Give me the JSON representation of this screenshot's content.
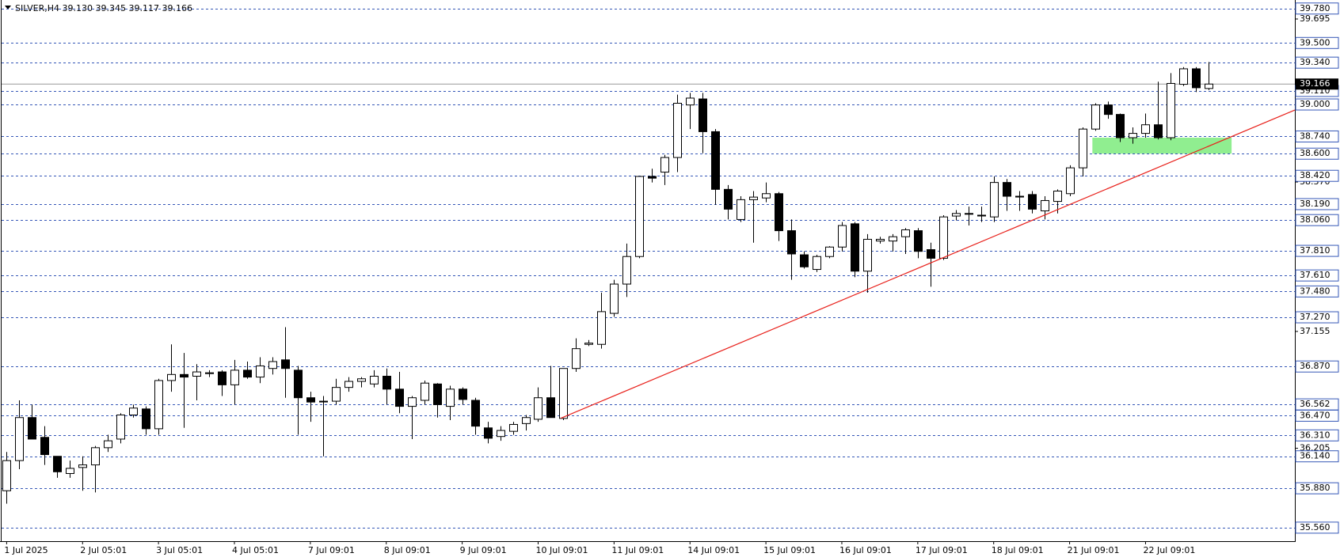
{
  "chart_data": {
    "type": "candlestick",
    "title": "SILVER,H4  39.130 39.345 39.117 39.166",
    "xlim": [
      -0.4,
      101.8
    ],
    "ylim": [
      35.45,
      39.83
    ],
    "xticks": [
      {
        "value": 0,
        "label": "1 Jul 2025"
      },
      {
        "value": 6,
        "label": "2 Jul 05:01"
      },
      {
        "value": 12,
        "label": "3 Jul 05:01"
      },
      {
        "value": 18,
        "label": "4 Jul 05:01"
      },
      {
        "value": 24,
        "label": "7 Jul 09:01"
      },
      {
        "value": 30,
        "label": "8 Jul 09:01"
      },
      {
        "value": 36,
        "label": "9 Jul 09:01"
      },
      {
        "value": 42,
        "label": "10 Jul 09:01"
      },
      {
        "value": 48,
        "label": "11 Jul 09:01"
      },
      {
        "value": 54,
        "label": "14 Jul 09:01"
      },
      {
        "value": 60,
        "label": "15 Jul 09:01"
      },
      {
        "value": 66,
        "label": "16 Jul 09:01"
      },
      {
        "value": 72,
        "label": "17 Jul 09:01"
      },
      {
        "value": 78,
        "label": "18 Jul 09:01"
      },
      {
        "value": 84,
        "label": "21 Jul 09:01"
      },
      {
        "value": 90,
        "label": "22 Jul 09:01"
      }
    ],
    "yticks": [
      39.695,
      {
        "value": 38.37,
        "label": "38.370"
      },
      37.155,
      36.205
    ],
    "levels": [
      {
        "value": 39.78,
        "label": "39.780"
      },
      {
        "value": 39.5,
        "label": "39.500"
      },
      {
        "value": 39.34,
        "label": "39.340"
      },
      {
        "value": 39.11,
        "label": "39.110"
      },
      {
        "value": 39.0,
        "label": "39.000"
      },
      {
        "value": 38.74,
        "label": "38.740"
      },
      {
        "value": 38.6,
        "label": "38.600"
      },
      {
        "value": 38.42,
        "label": "38.420"
      },
      {
        "value": 38.19,
        "label": "38.190"
      },
      {
        "value": 38.06,
        "label": "38.060"
      },
      {
        "value": 37.81,
        "label": "37.810"
      },
      {
        "value": 37.61,
        "label": "37.610"
      },
      {
        "value": 37.48,
        "label": "37.480"
      },
      {
        "value": 37.27,
        "label": "37.270"
      },
      {
        "value": 36.87,
        "label": "36.870"
      },
      36.562,
      {
        "value": 36.47,
        "label": "36.470"
      },
      {
        "value": 36.31,
        "label": "36.310"
      },
      {
        "value": 36.14,
        "label": "36.140"
      },
      {
        "value": 35.88,
        "label": "35.880"
      },
      {
        "value": 35.56,
        "label": "35.560"
      }
    ],
    "level_color": "#3557b7",
    "last_price": 39.166,
    "open": [
      35.86,
      36.105,
      36.455,
      36.294,
      36.14,
      36.0,
      36.049,
      36.07,
      36.21,
      36.28,
      36.476,
      36.525,
      36.364,
      36.756,
      36.805,
      36.791,
      36.812,
      36.826,
      36.721,
      36.84,
      36.784,
      36.854,
      36.924,
      36.84,
      36.616,
      36.588,
      36.588,
      36.7,
      36.749,
      36.728,
      36.791,
      36.686,
      36.546,
      36.595,
      36.728,
      36.546,
      36.686,
      36.595,
      36.371,
      36.301,
      36.343,
      36.406,
      36.441,
      36.616,
      36.448,
      36.854,
      37.05,
      37.05,
      37.302,
      37.54,
      37.764,
      38.415,
      38.45,
      38.569,
      38.996,
      39.045,
      38.779,
      38.31,
      38.065,
      38.226,
      38.24,
      38.275,
      37.974,
      37.778,
      37.659,
      37.764,
      37.841,
      38.03,
      37.645,
      37.89,
      37.89,
      37.925,
      37.974,
      37.82,
      37.75,
      38.093,
      38.114,
      38.1,
      38.086,
      38.366,
      38.254,
      38.268,
      38.135,
      38.212,
      38.275,
      38.485,
      38.8,
      38.996,
      38.919,
      38.73,
      38.765,
      38.835,
      38.73,
      39.164,
      39.29,
      39.13
    ],
    "high": [
      36.175,
      36.595,
      36.56,
      36.385,
      36.14,
      36.105,
      36.14,
      36.224,
      36.315,
      36.49,
      36.56,
      36.546,
      36.77,
      37.05,
      36.98,
      36.889,
      36.84,
      36.84,
      36.924,
      36.91,
      36.945,
      36.945,
      37.19,
      36.875,
      36.665,
      36.63,
      36.77,
      36.784,
      36.784,
      36.84,
      36.854,
      36.826,
      36.63,
      36.756,
      36.735,
      36.714,
      36.7,
      36.616,
      36.42,
      36.385,
      36.42,
      36.476,
      36.7,
      36.875,
      36.854,
      37.099,
      37.085,
      37.47,
      37.575,
      37.869,
      38.415,
      38.478,
      38.59,
      39.08,
      39.094,
      39.094,
      38.8,
      38.345,
      38.254,
      38.296,
      38.366,
      38.289,
      38.065,
      37.806,
      37.778,
      37.848,
      38.044,
      38.044,
      37.946,
      37.925,
      37.946,
      37.995,
      37.995,
      37.876,
      38.1,
      38.142,
      38.17,
      38.17,
      38.415,
      38.394,
      38.296,
      38.296,
      38.254,
      38.31,
      38.506,
      38.814,
      39.01,
      39.024,
      38.926,
      38.814,
      38.926,
      39.185,
      39.255,
      39.304,
      39.304,
      39.345
    ],
    "low": [
      35.755,
      36.035,
      36.28,
      36.07,
      35.965,
      35.965,
      35.86,
      35.846,
      36.175,
      36.245,
      36.455,
      36.315,
      36.315,
      36.665,
      36.371,
      36.595,
      36.784,
      36.63,
      36.56,
      36.77,
      36.735,
      36.805,
      36.616,
      36.315,
      36.42,
      36.14,
      36.56,
      36.665,
      36.7,
      36.7,
      36.56,
      36.49,
      36.28,
      36.56,
      36.455,
      36.434,
      36.56,
      36.315,
      36.245,
      36.266,
      36.315,
      36.35,
      36.42,
      36.455,
      36.434,
      36.826,
      37.036,
      37.015,
      37.274,
      37.435,
      37.75,
      38.366,
      38.345,
      38.45,
      38.8,
      38.604,
      38.184,
      38.065,
      38.044,
      37.876,
      38.205,
      37.89,
      37.575,
      37.666,
      37.638,
      37.75,
      37.806,
      37.596,
      37.47,
      37.869,
      37.806,
      37.785,
      37.75,
      37.519,
      37.736,
      38.058,
      38.016,
      38.044,
      38.044,
      38.135,
      38.135,
      38.114,
      38.065,
      38.114,
      38.254,
      38.415,
      38.786,
      38.884,
      38.695,
      38.681,
      38.73,
      38.716,
      38.709,
      39.15,
      39.101,
      39.117
    ],
    "close": [
      36.105,
      36.455,
      36.28,
      36.154,
      36.014,
      36.042,
      36.07,
      36.21,
      36.266,
      36.476,
      36.532,
      36.364,
      36.756,
      36.805,
      36.784,
      36.826,
      36.819,
      36.721,
      36.84,
      36.784,
      36.875,
      36.91,
      36.854,
      36.616,
      36.581,
      36.588,
      36.7,
      36.749,
      36.77,
      36.791,
      36.686,
      36.546,
      36.616,
      36.735,
      36.56,
      36.686,
      36.602,
      36.385,
      36.287,
      36.35,
      36.399,
      36.455,
      36.616,
      36.455,
      36.854,
      37.015,
      37.06,
      37.316,
      37.54,
      37.764,
      38.415,
      38.401,
      38.569,
      39.01,
      39.052,
      38.779,
      38.31,
      38.149,
      38.226,
      38.247,
      38.275,
      37.974,
      37.785,
      37.68,
      37.764,
      37.841,
      38.016,
      37.645,
      37.904,
      37.904,
      37.925,
      37.981,
      37.806,
      37.75,
      38.086,
      38.114,
      38.114,
      38.1,
      38.366,
      38.254,
      38.254,
      38.149,
      38.219,
      38.296,
      38.485,
      38.8,
      38.996,
      38.919,
      38.73,
      38.765,
      38.835,
      38.73,
      39.171,
      39.29,
      39.136,
      39.166
    ],
    "trendline": {
      "x": [
        43.8,
        101.8
      ],
      "y": [
        36.45,
        38.955
      ],
      "color": "#e8211b"
    },
    "zone": {
      "x": [
        85.8,
        96.8
      ],
      "y": [
        38.6,
        38.73
      ],
      "color": "#90ee90"
    }
  }
}
